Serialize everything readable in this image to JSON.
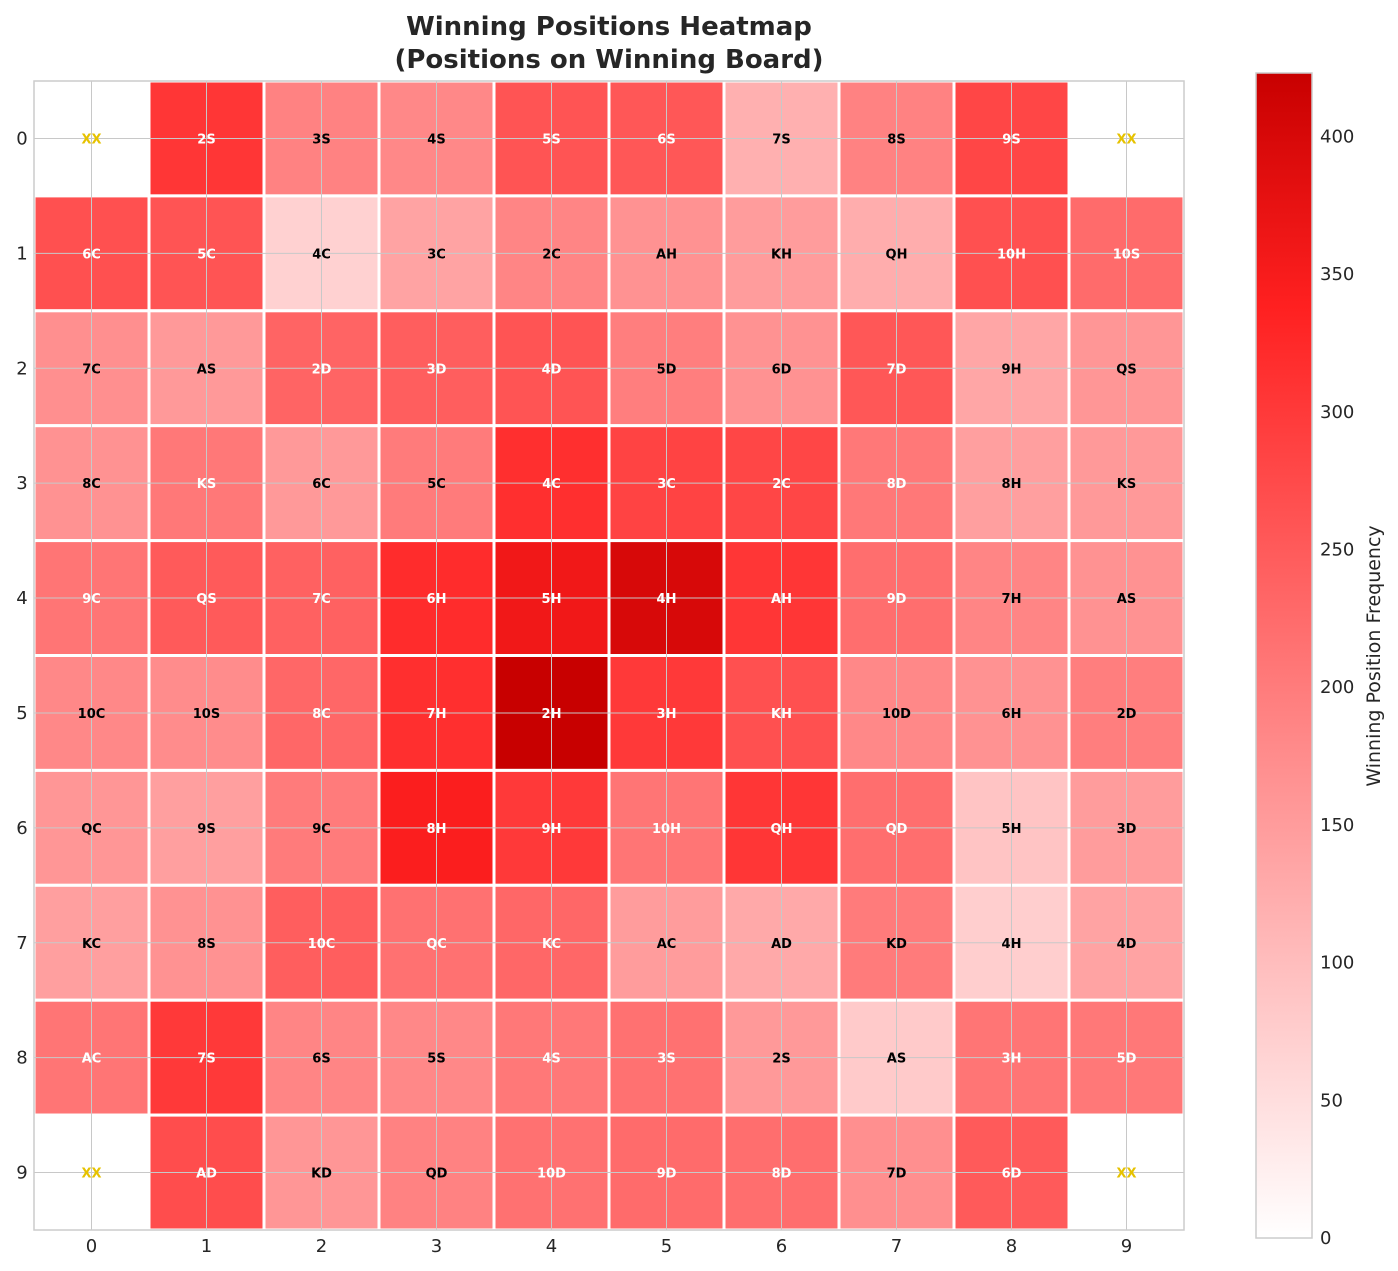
{
  "chart_data": {
    "type": "heatmap",
    "title": "Winning Positions Heatmap",
    "subtitle": "(Positions on Winning Board)",
    "x_ticks": [
      "0",
      "1",
      "2",
      "3",
      "4",
      "5",
      "6",
      "7",
      "8",
      "9"
    ],
    "y_ticks": [
      "0",
      "1",
      "2",
      "3",
      "4",
      "5",
      "6",
      "7",
      "8",
      "9"
    ],
    "colorbar": {
      "label": "Winning Position Frequency",
      "min": 0,
      "max": 423,
      "ticks": [
        0,
        50,
        100,
        150,
        200,
        250,
        300,
        350,
        400
      ],
      "colors": {
        "low": "#ffffff",
        "mid": "#ff2020",
        "high": "#c80000"
      }
    },
    "labels": [
      [
        "XX",
        "2S",
        "3S",
        "4S",
        "5S",
        "6S",
        "7S",
        "8S",
        "9S",
        "XX"
      ],
      [
        "6C",
        "5C",
        "4C",
        "3C",
        "2C",
        "AH",
        "KH",
        "QH",
        "10H",
        "10S"
      ],
      [
        "7C",
        "AS",
        "2D",
        "3D",
        "4D",
        "5D",
        "6D",
        "7D",
        "9H",
        "QS"
      ],
      [
        "8C",
        "KS",
        "6C",
        "5C",
        "4C",
        "3C",
        "2C",
        "8D",
        "8H",
        "KS"
      ],
      [
        "9C",
        "QS",
        "7C",
        "6H",
        "5H",
        "4H",
        "AH",
        "9D",
        "7H",
        "AS"
      ],
      [
        "10C",
        "10S",
        "8C",
        "7H",
        "2H",
        "3H",
        "KH",
        "10D",
        "6H",
        "2D"
      ],
      [
        "QC",
        "9S",
        "9C",
        "8H",
        "9H",
        "10H",
        "QH",
        "QD",
        "5H",
        "3D"
      ],
      [
        "KC",
        "8S",
        "10C",
        "QC",
        "KC",
        "AC",
        "AD",
        "KD",
        "4H",
        "4D"
      ],
      [
        "AC",
        "7S",
        "6S",
        "5S",
        "4S",
        "3S",
        "2S",
        "AS",
        "3H",
        "5D"
      ],
      [
        "XX",
        "AD",
        "KD",
        "QD",
        "10D",
        "9D",
        "8D",
        "7D",
        "6D",
        "XX"
      ]
    ],
    "values": [
      [
        null,
        305,
        190,
        180,
        260,
        255,
        120,
        190,
        280,
        null
      ],
      [
        265,
        260,
        70,
        140,
        185,
        165,
        150,
        125,
        265,
        225
      ],
      [
        170,
        155,
        235,
        245,
        260,
        195,
        165,
        255,
        135,
        160
      ],
      [
        165,
        205,
        155,
        200,
        315,
        285,
        280,
        205,
        145,
        155
      ],
      [
        210,
        250,
        240,
        320,
        360,
        400,
        305,
        220,
        185,
        165
      ],
      [
        180,
        175,
        230,
        315,
        423,
        300,
        265,
        180,
        165,
        195
      ],
      [
        160,
        145,
        200,
        345,
        300,
        210,
        305,
        220,
        90,
        150
      ],
      [
        145,
        165,
        245,
        215,
        230,
        150,
        130,
        200,
        75,
        140
      ],
      [
        210,
        300,
        185,
        180,
        205,
        215,
        155,
        80,
        210,
        205
      ],
      [
        null,
        270,
        160,
        190,
        215,
        225,
        220,
        170,
        250,
        null
      ]
    ],
    "xx_color": "#e6c200"
  }
}
